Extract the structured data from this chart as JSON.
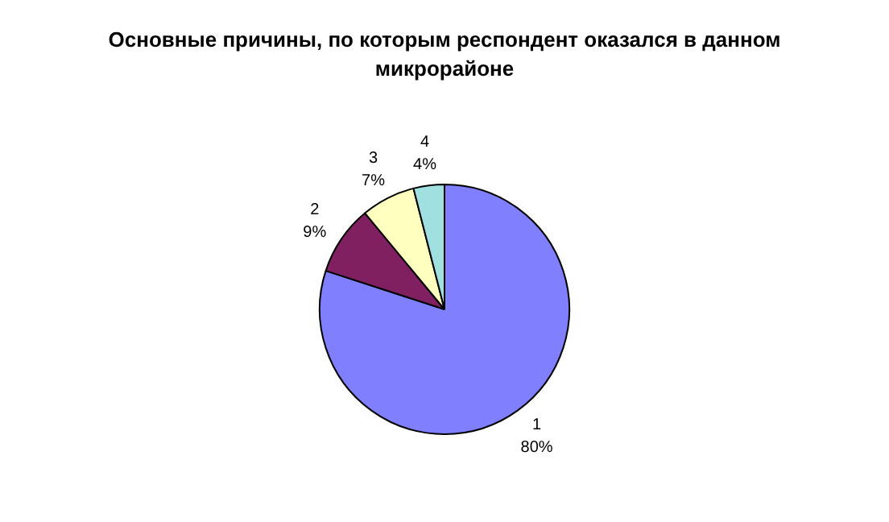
{
  "chart_data": {
    "type": "pie",
    "title": "Основные причины, по которым респондент оказался в данном микрорайоне",
    "categories": [
      "1",
      "2",
      "3",
      "4"
    ],
    "values": [
      80,
      9,
      7,
      4
    ],
    "value_labels": [
      "80%",
      "9%",
      "7%",
      "4%"
    ],
    "colors": [
      "#8080ff",
      "#802060",
      "#ffffc0",
      "#a0e0e0"
    ],
    "legend": false
  }
}
